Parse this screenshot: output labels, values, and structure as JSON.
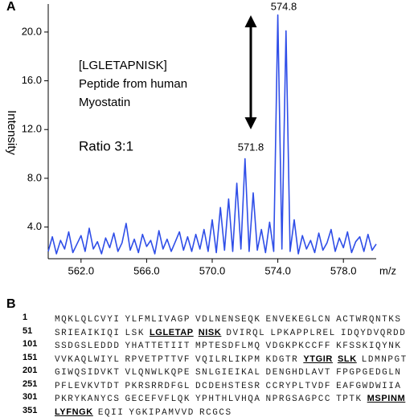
{
  "panel_labels": [
    "A",
    "B"
  ],
  "chart_data": {
    "type": "line",
    "ylabel": "Intensity",
    "xlabel": "m/z",
    "color": "#2f4ee8",
    "x": [
      560.0,
      560.25,
      560.5,
      560.75,
      561.0,
      561.25,
      561.5,
      561.75,
      562.0,
      562.25,
      562.5,
      562.75,
      563.0,
      563.25,
      563.5,
      563.75,
      564.0,
      564.25,
      564.5,
      564.75,
      565.0,
      565.25,
      565.5,
      565.75,
      566.0,
      566.25,
      566.5,
      566.75,
      567.0,
      567.25,
      567.5,
      567.75,
      568.0,
      568.25,
      568.5,
      568.75,
      569.0,
      569.25,
      569.5,
      569.75,
      570.0,
      570.25,
      570.5,
      570.75,
      571.0,
      571.25,
      571.5,
      571.75,
      572.0,
      572.25,
      572.5,
      572.75,
      573.0,
      573.25,
      573.5,
      573.75,
      574.0,
      574.25,
      574.5,
      574.75,
      575.0,
      575.25,
      575.5,
      575.75,
      576.0,
      576.25,
      576.5,
      576.75,
      577.0,
      577.25,
      577.5,
      577.75,
      578.0,
      578.25,
      578.5,
      578.75,
      579.0,
      579.25,
      579.5,
      579.75,
      580.0
    ],
    "values": [
      2.0,
      3.2,
      1.8,
      2.9,
      2.2,
      3.6,
      1.9,
      2.6,
      3.3,
      2.0,
      3.9,
      2.2,
      2.8,
      1.8,
      3.1,
      2.3,
      3.5,
      2.0,
      2.7,
      4.3,
      2.1,
      3.0,
      1.9,
      3.4,
      2.4,
      2.9,
      1.8,
      3.7,
      2.2,
      3.0,
      2.0,
      2.8,
      3.6,
      2.1,
      3.2,
      2.0,
      3.4,
      2.2,
      3.8,
      2.0,
      4.6,
      1.9,
      5.6,
      2.1,
      6.3,
      2.0,
      7.6,
      2.2,
      9.6,
      2.0,
      6.8,
      2.1,
      3.8,
      1.9,
      4.4,
      2.0,
      21.4,
      2.2,
      20.1,
      2.0,
      4.6,
      1.8,
      3.3,
      2.2,
      2.9,
      1.9,
      3.5,
      2.1,
      2.7,
      3.8,
      2.0,
      3.1,
      2.3,
      3.6,
      1.9,
      2.8,
      3.2,
      2.0,
      3.4,
      2.1,
      2.6
    ],
    "xlim": [
      560,
      580
    ],
    "xticks": [
      {
        "value": 562,
        "label": "562.0"
      },
      {
        "value": 566,
        "label": "566.0"
      },
      {
        "value": 570,
        "label": "570.0"
      },
      {
        "value": 574,
        "label": "574.0"
      },
      {
        "value": 578,
        "label": "578.0"
      }
    ],
    "ylim": [
      1.4,
      22.3
    ],
    "yticks": [
      {
        "value": 4,
        "label": "4.0"
      },
      {
        "value": 8,
        "label": "8.0"
      },
      {
        "value": 12,
        "label": "12.0"
      },
      {
        "value": 16,
        "label": "16.0"
      },
      {
        "value": 20,
        "label": "20.0"
      }
    ],
    "peak_labels": [
      "574.8",
      "571.8"
    ],
    "annotations": [
      "[LGLETAPNISK]",
      "Peptide from human",
      "Myostatin",
      "Ratio 3:1"
    ]
  },
  "sequence": {
    "rows": [
      {
        "number": "1",
        "parts": [
          {
            "text": "MQKLQLCVYI"
          },
          {
            "text": "YLFMLIVAGP"
          },
          {
            "text": "VDLNENSEQK"
          },
          {
            "text": "ENVEKEGLCN"
          },
          {
            "text": "ACTWRQNTKS"
          }
        ]
      },
      {
        "number": "51",
        "parts": [
          {
            "text": "SRIEAIKIQI"
          },
          {
            "text": "LSK"
          },
          {
            "text": "LGLETAP",
            "emphasis": true
          },
          {
            "text": "NISK",
            "emphasis": true
          },
          {
            "text": "DVIRQL"
          },
          {
            "text": "LPKAPPLREL"
          },
          {
            "text": "IDQYDVQRDD"
          }
        ]
      },
      {
        "number": "101",
        "parts": [
          {
            "text": "SSDGSLEDDD"
          },
          {
            "text": "YHATTETIIT"
          },
          {
            "text": "MPTESDFLMQ"
          },
          {
            "text": "VDGKPKCCFF"
          },
          {
            "text": "KFSSKIQYNK"
          }
        ]
      },
      {
        "number": "151",
        "parts": [
          {
            "text": "VVKAQLWIYL"
          },
          {
            "text": "RPVETPTTVF"
          },
          {
            "text": "VQILRLIKPM"
          },
          {
            "text": "KDGTR"
          },
          {
            "text": "YTGIR",
            "emphasis": true
          },
          {
            "text": "SLK",
            "emphasis": true
          },
          {
            "text": "LDMNPGT"
          }
        ]
      },
      {
        "number": "201",
        "parts": [
          {
            "text": "GIWQSIDVKT"
          },
          {
            "text": "VLQNWLKQPE"
          },
          {
            "text": "SNLGIEIKAL"
          },
          {
            "text": "DENGHDLAVT"
          },
          {
            "text": "FPGPGEDGLN"
          }
        ]
      },
      {
        "number": "251",
        "parts": [
          {
            "text": "PFLEVKVTDT"
          },
          {
            "text": "PKRSRRDFGL"
          },
          {
            "text": "DCDEHSTESR"
          },
          {
            "text": "CCRYPLTVDF"
          },
          {
            "text": "EAFGWDWIIA"
          }
        ]
      },
      {
        "number": "301",
        "parts": [
          {
            "text": "PKRYKANYCS"
          },
          {
            "text": "GECEFVFLQK"
          },
          {
            "text": "YPHTHLVHQA"
          },
          {
            "text": "NPRGSAGPCC"
          },
          {
            "text": "TPTK"
          },
          {
            "text": "MSPINM",
            "emphasis": true
          }
        ]
      },
      {
        "number": "351",
        "parts": [
          {
            "text": "LYFNGK",
            "emphasis": true
          },
          {
            "text": "EQII"
          },
          {
            "text": "YGKIPAMVVD"
          },
          {
            "text": "RCGCS"
          }
        ]
      }
    ]
  }
}
